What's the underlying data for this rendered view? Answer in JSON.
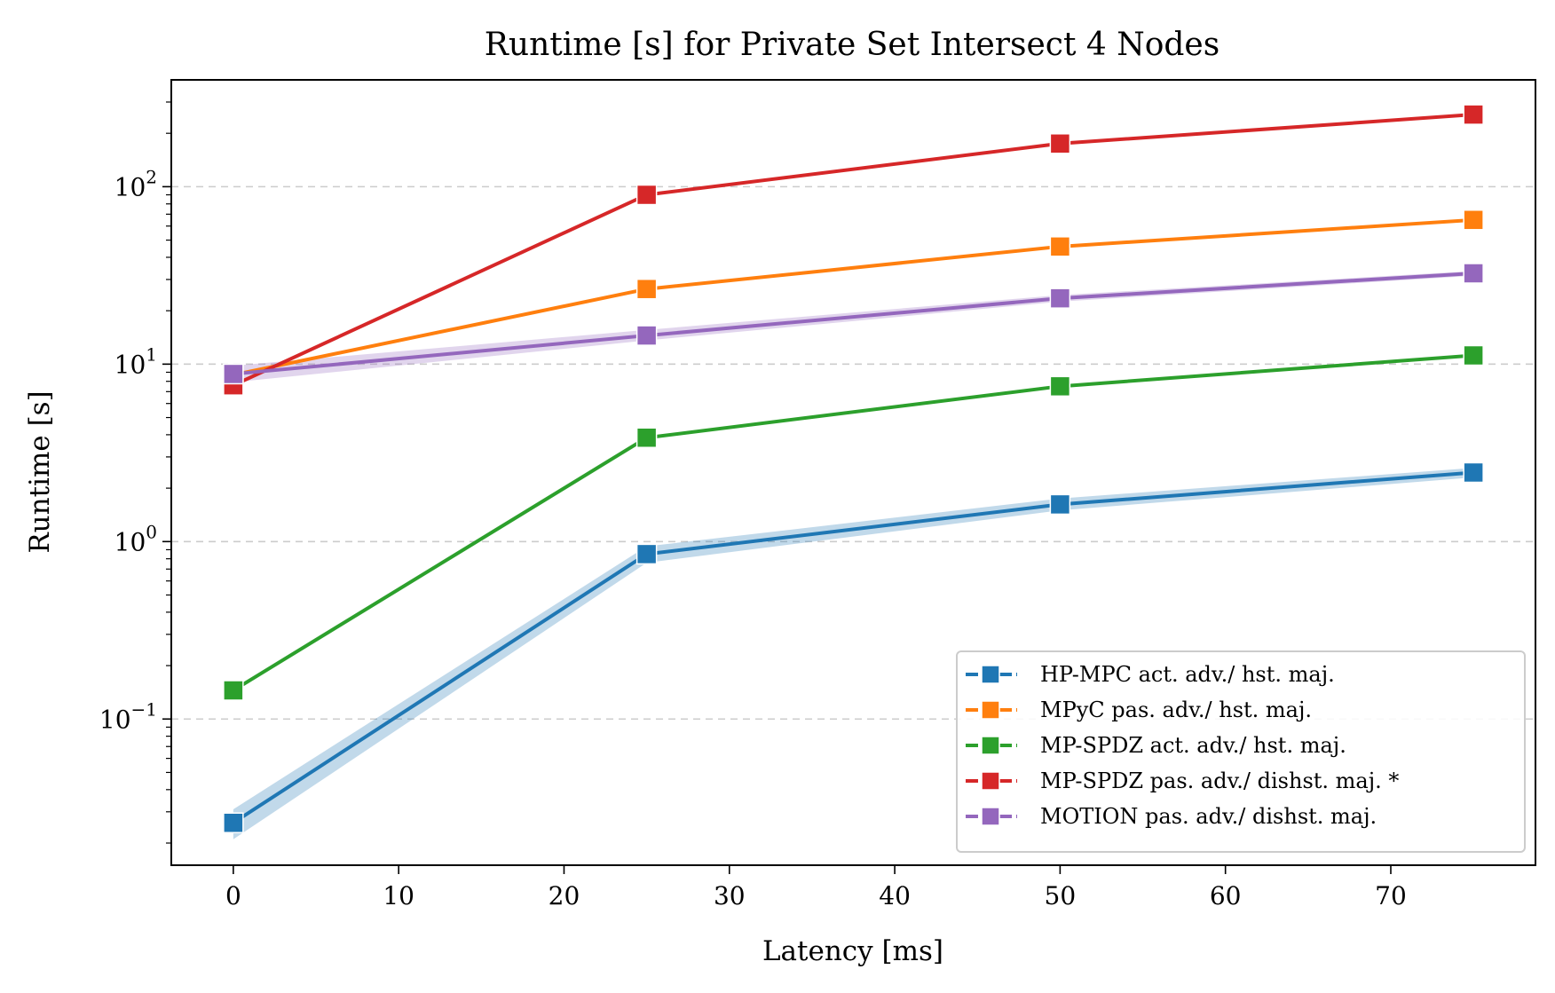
{
  "chart_data": {
    "type": "line",
    "title": "Runtime [s] for Private Set Intersect 4 Nodes",
    "xlabel": "Latency [ms]",
    "ylabel": "Runtime [s]",
    "yscale": "log",
    "xlim": [
      -3.75,
      78.75
    ],
    "ylim": [
      0.015,
      400
    ],
    "x_ticks": [
      0,
      10,
      20,
      30,
      40,
      50,
      60,
      70
    ],
    "y_ticks": [
      {
        "value": 0.1,
        "base": "10",
        "exp": "−1"
      },
      {
        "value": 1,
        "base": "10",
        "exp": "0"
      },
      {
        "value": 10,
        "base": "10",
        "exp": "1"
      },
      {
        "value": 100,
        "base": "10",
        "exp": "2"
      }
    ],
    "grid": "y-major-dashed",
    "legend_position": "lower-right",
    "x": [
      0,
      25,
      50,
      75
    ],
    "series": [
      {
        "name": "HP-MPC act. adv./ hst. maj.",
        "color": "#1f77b4",
        "values": [
          0.026,
          0.85,
          1.62,
          2.45
        ],
        "band": [
          [
            0.021,
            0.031
          ],
          [
            0.76,
            0.94
          ],
          [
            1.5,
            1.75
          ],
          [
            2.3,
            2.6
          ]
        ]
      },
      {
        "name": "MPyC pas. adv./ hst. maj.",
        "color": "#ff7f0e",
        "values": [
          8.7,
          26.5,
          46,
          65
        ]
      },
      {
        "name": "MP-SPDZ act. adv./ hst. maj.",
        "color": "#2ca02c",
        "values": [
          0.145,
          3.85,
          7.5,
          11.2
        ]
      },
      {
        "name": "MP-SPDZ pas. adv./ dishst. maj. *",
        "color": "#d62728",
        "values": [
          7.6,
          90,
          175,
          255
        ]
      },
      {
        "name": "MOTION pas. adv./ dishst. maj.",
        "color": "#9467bd",
        "values": [
          8.8,
          14.5,
          23.5,
          32.5
        ],
        "band": [
          [
            7.9,
            9.8
          ],
          [
            13.6,
            15.6
          ],
          [
            22.5,
            24.5
          ],
          [
            31.5,
            33.5
          ]
        ]
      }
    ]
  }
}
